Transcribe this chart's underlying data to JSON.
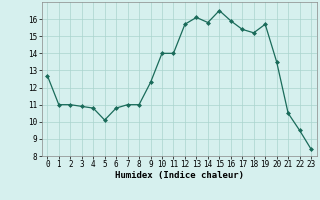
{
  "x": [
    0,
    1,
    2,
    3,
    4,
    5,
    6,
    7,
    8,
    9,
    10,
    11,
    12,
    13,
    14,
    15,
    16,
    17,
    18,
    19,
    20,
    21,
    22,
    23
  ],
  "y": [
    12.7,
    11.0,
    11.0,
    10.9,
    10.8,
    10.1,
    10.8,
    11.0,
    11.0,
    12.3,
    14.0,
    14.0,
    15.7,
    16.1,
    15.8,
    16.5,
    15.9,
    15.4,
    15.2,
    15.7,
    13.5,
    10.5,
    9.5,
    8.4
  ],
  "xlabel": "Humidex (Indice chaleur)",
  "ylim": [
    8,
    17
  ],
  "xlim": [
    -0.5,
    23.5
  ],
  "yticks": [
    8,
    9,
    10,
    11,
    12,
    13,
    14,
    15,
    16
  ],
  "xticks": [
    0,
    1,
    2,
    3,
    4,
    5,
    6,
    7,
    8,
    9,
    10,
    11,
    12,
    13,
    14,
    15,
    16,
    17,
    18,
    19,
    20,
    21,
    22,
    23
  ],
  "line_color": "#1a6b5a",
  "bg_color": "#d6f0ee",
  "grid_color": "#aad4ce",
  "label_fontsize": 6.5,
  "tick_fontsize": 5.5
}
